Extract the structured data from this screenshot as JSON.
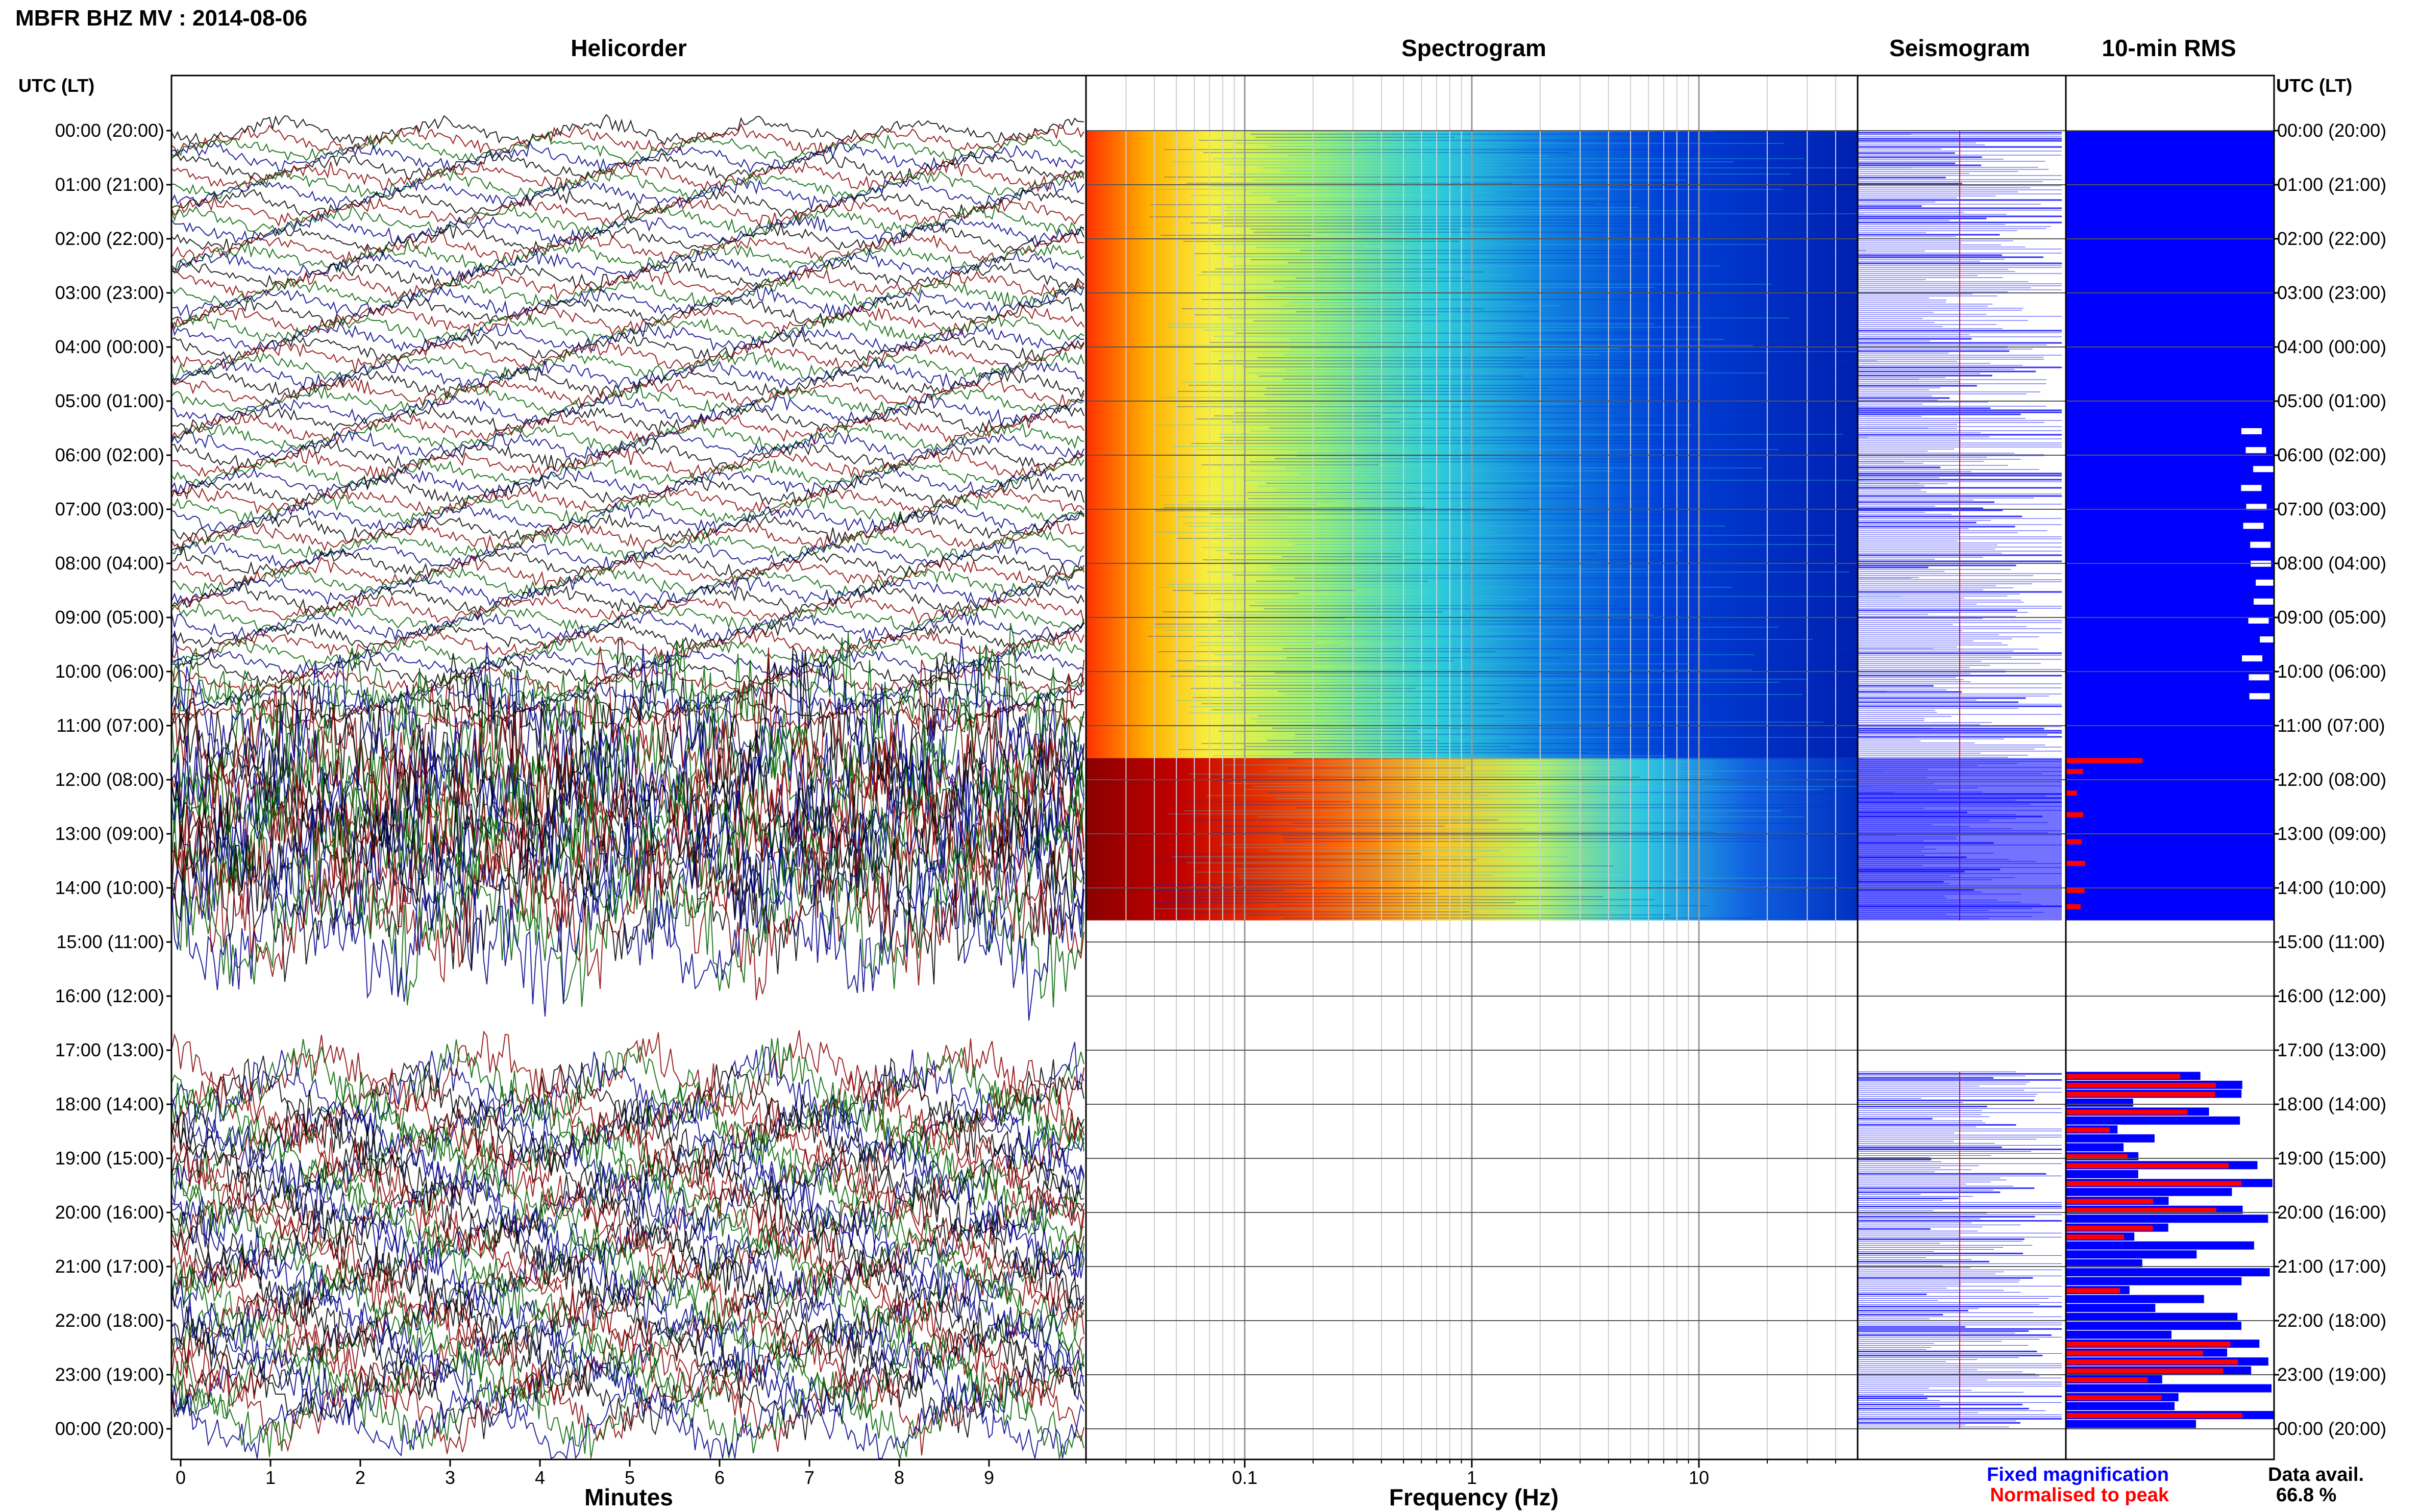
{
  "title": "MBFR BHZ MV : 2014-08-06",
  "panels": {
    "helicorder": "Helicorder",
    "spectrogram": "Spectrogram",
    "seismogram": "Seismogram",
    "rms": "10-min RMS"
  },
  "axis_label_left": "UTC (LT)",
  "axis_label_right": "UTC (LT)",
  "hour_labels": [
    "00:00 (20:00)",
    "01:00 (21:00)",
    "02:00 (22:00)",
    "03:00 (23:00)",
    "04:00 (00:00)",
    "05:00 (01:00)",
    "06:00 (02:00)",
    "07:00 (03:00)",
    "08:00 (04:00)",
    "09:00 (05:00)",
    "10:00 (06:00)",
    "11:00 (07:00)",
    "12:00 (08:00)",
    "13:00 (09:00)",
    "14:00 (10:00)",
    "15:00 (11:00)",
    "16:00 (12:00)",
    "17:00 (13:00)",
    "18:00 (14:00)",
    "19:00 (15:00)",
    "20:00 (16:00)",
    "21:00 (17:00)",
    "22:00 (18:00)",
    "23:00 (19:00)",
    "00:00 (20:00)"
  ],
  "helicorder_xlabel": "Minutes",
  "helicorder_ticks": [
    "0",
    "1",
    "2",
    "3",
    "4",
    "5",
    "6",
    "7",
    "8",
    "9"
  ],
  "spectrogram_xlabel": "Frequency (Hz)",
  "spectrogram_ticks": [
    "0.1",
    "1",
    "10"
  ],
  "legend": {
    "fixed": "Fixed magnification",
    "normalised": "Normalised to peak"
  },
  "data_avail": {
    "label": "Data avail.",
    "value": "66.8 %"
  },
  "colors": {
    "fixed": "#0000ff",
    "normalised": "#ff0000",
    "trace_colors": [
      "#000000",
      "#8b0000",
      "#006400",
      "#00008b"
    ]
  },
  "chart_data": [
    {
      "type": "line",
      "title": "Helicorder",
      "xlabel": "Minutes",
      "xlim": [
        0,
        10.2
      ],
      "ylabel": "UTC (LT)",
      "rows_hours": [
        0,
        24
      ],
      "rows_per_hour": 6,
      "data_coverage_hours": [
        [
          0,
          14.6
        ],
        [
          17.4,
          24
        ]
      ]
    },
    {
      "type": "heatmap",
      "title": "Spectrogram",
      "xlabel": "Frequency (Hz)",
      "x_scale": "log",
      "xlim": [
        0.02,
        50
      ],
      "y_hours": [
        0,
        24
      ],
      "data_coverage_hours": [
        [
          0,
          14.6
        ]
      ],
      "high_energy_from_hour": 11.6
    },
    {
      "type": "bar",
      "title": "10-min RMS",
      "orientation": "horizontal",
      "series": [
        {
          "name": "Fixed magnification",
          "color": "#0000ff"
        },
        {
          "name": "Normalised to peak",
          "color": "#ff0000"
        }
      ],
      "data_coverage_hours": [
        [
          0,
          14.6
        ],
        [
          17.4,
          24
        ]
      ],
      "data_availability_percent": 66.8
    }
  ]
}
